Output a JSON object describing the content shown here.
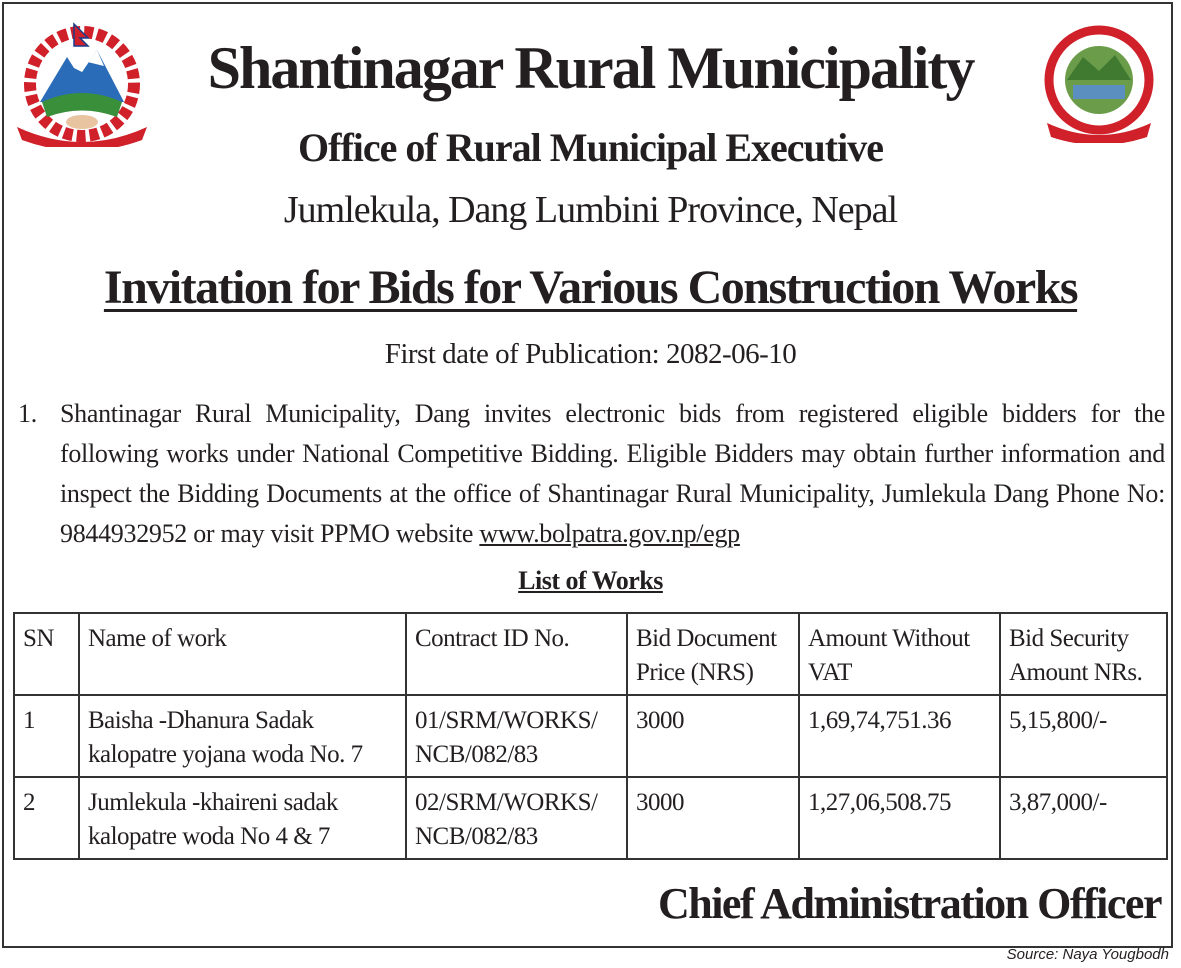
{
  "header": {
    "title": "Shantinagar Rural Municipality",
    "office": "Office of Rural Municipal Executive",
    "address": "Jumlekula, Dang Lumbini Province, Nepal",
    "left_logo": "nepal-government-emblem",
    "right_logo": "shantinagar-municipality-seal"
  },
  "notice": {
    "heading": "Invitation for Bids for Various Construction Works",
    "publication": "First date of Publication: 2082-06-10",
    "para_number": "1.",
    "para_text": "Shantinagar Rural Municipality, Dang invites electronic bids from registered eligible bidders for the following works under National Competitive Bidding. Eligible Bidders may obtain further information and inspect the Bidding Documents at the office of Shantinagar Rural Municipality, Jumlekula  Dang Phone No: 9844932952  or may visit PPMO website ",
    "link": "www.bolpatra.gov.np/egp",
    "list_title": "List of Works"
  },
  "table": {
    "headers": [
      "SN",
      "Name of work",
      "Contract ID No.",
      "Bid Document Price (NRS)",
      "Amount Without VAT",
      "Bid Security Amount NRs."
    ],
    "rows": [
      [
        "1",
        "Baisha -Dhanura Sadak kalopatre yojana woda No. 7",
        "01/SRM/WORKS/ NCB/082/83",
        "3000",
        "1,69,74,751.36",
        "5,15,800/-"
      ],
      [
        "2",
        "Jumlekula -khaireni sadak kalopatre woda No 4 & 7",
        "02/SRM/WORKS/ NCB/082/83",
        "3000",
        "1,27,06,508.75",
        "3,87,000/-"
      ]
    ]
  },
  "footer": {
    "signatory": "Chief Administration Officer",
    "source": "Source: Naya Yougbodh"
  }
}
